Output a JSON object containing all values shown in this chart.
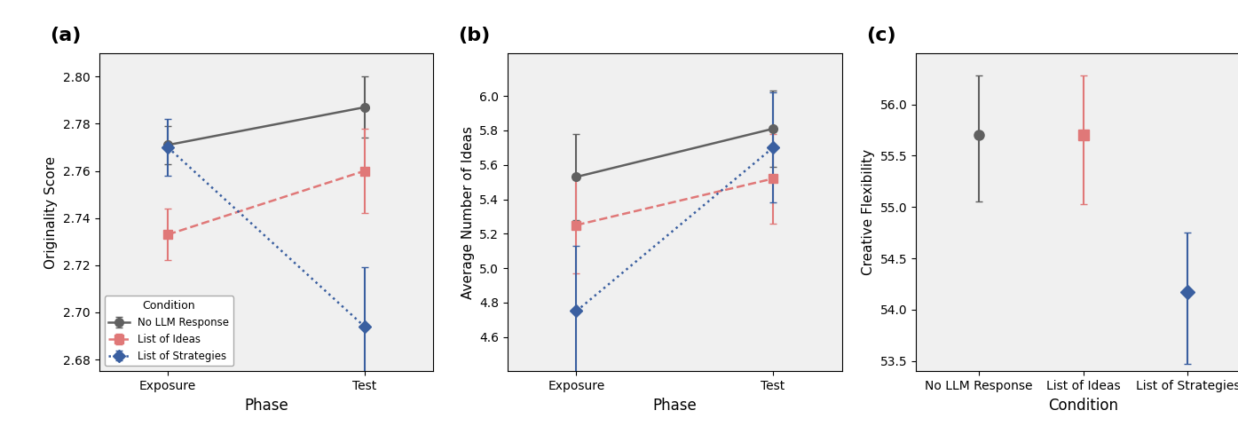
{
  "panel_a": {
    "title": "(a)",
    "xlabel": "Phase",
    "ylabel": "Originality Score",
    "phases": [
      "Exposure",
      "Test"
    ],
    "conditions": {
      "No LLM Response": {
        "means": [
          2.771,
          2.787
        ],
        "yerr": [
          0.008,
          0.013
        ],
        "color": "#606060",
        "linestyle": "solid",
        "marker": "o",
        "label": "No LLM Response"
      },
      "List of Ideas": {
        "means": [
          2.733,
          2.76
        ],
        "yerr": [
          0.011,
          0.018
        ],
        "color": "#E07878",
        "linestyle": "dashed",
        "marker": "s",
        "label": "List of Ideas"
      },
      "List of Strategies": {
        "means": [
          2.77,
          2.694
        ],
        "yerr": [
          0.012,
          0.025
        ],
        "color": "#3A5FA0",
        "linestyle": "dotted",
        "marker": "D",
        "label": "List of Strategies"
      }
    },
    "ylim": [
      2.675,
      2.81
    ],
    "yticks": [
      2.68,
      2.7,
      2.72,
      2.74,
      2.76,
      2.78,
      2.8
    ],
    "legend_loc": "lower left"
  },
  "panel_b": {
    "title": "(b)",
    "xlabel": "Phase",
    "ylabel": "Average Number of Ideas",
    "phases": [
      "Exposure",
      "Test"
    ],
    "conditions": {
      "No LLM Response": {
        "means": [
          5.53,
          5.81
        ],
        "yerr": [
          0.25,
          0.22
        ],
        "color": "#606060",
        "linestyle": "solid",
        "marker": "o"
      },
      "List of Ideas": {
        "means": [
          5.25,
          5.52
        ],
        "yerr": [
          0.28,
          0.26
        ],
        "color": "#E07878",
        "linestyle": "dashed",
        "marker": "s"
      },
      "List of Strategies": {
        "means": [
          4.75,
          5.7
        ],
        "yerr": [
          0.38,
          0.32
        ],
        "color": "#3A5FA0",
        "linestyle": "dotted",
        "marker": "D"
      }
    },
    "ylim": [
      4.4,
      6.25
    ],
    "yticks": [
      4.6,
      4.8,
      5.0,
      5.2,
      5.4,
      5.6,
      5.8,
      6.0
    ]
  },
  "panel_c": {
    "title": "(c)",
    "xlabel": "Condition",
    "ylabel": "Creative Flexibility",
    "conditions": [
      "No LLM Response",
      "List of Ideas",
      "List of Strategies"
    ],
    "means": [
      55.7,
      55.7,
      54.17
    ],
    "yerr_low": [
      0.65,
      0.67,
      0.7
    ],
    "yerr_high": [
      0.58,
      0.58,
      0.58
    ],
    "colors": [
      "#606060",
      "#E07878",
      "#3A5FA0"
    ],
    "markers": [
      "o",
      "s",
      "D"
    ],
    "ylim": [
      53.4,
      56.5
    ],
    "yticks": [
      53.5,
      54.0,
      54.5,
      55.0,
      55.5,
      56.0
    ]
  },
  "background_color": "#f0f0f0",
  "legend_title": "Condition"
}
